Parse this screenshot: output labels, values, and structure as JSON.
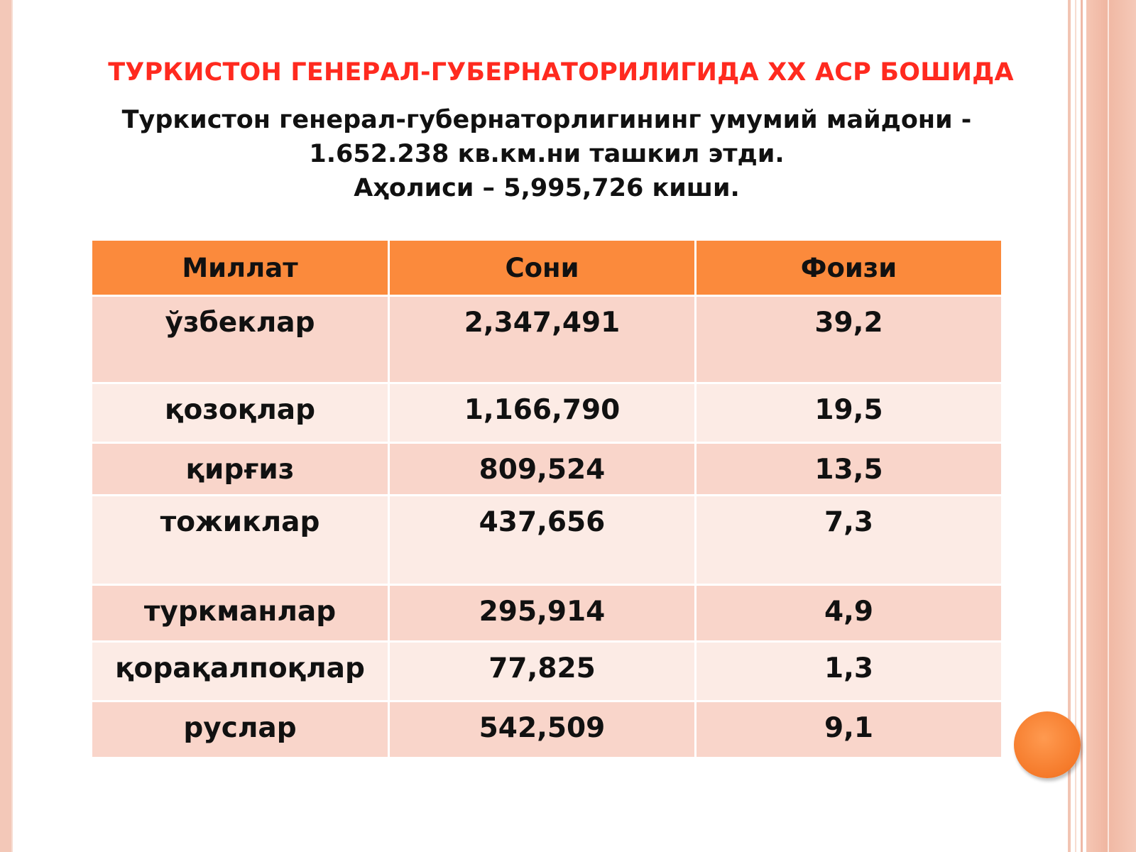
{
  "slide": {
    "title": "ТУРКИСТОН ГЕНЕРАЛ-ГУБЕРНАТОРИЛИГИДА XX АСР БОШИДА",
    "subtitle_line1": "Туркистон генерал-губернаторлигининг умумий майдони -",
    "subtitle_line2": "1.652.238 кв.км.ни ташкил этди.",
    "subtitle_line3": "Аҳолиси – 5,995,726 киши."
  },
  "table": {
    "headers": [
      "Миллат",
      "Сони",
      "Фоизи"
    ],
    "rows": [
      [
        "ўзбеклар",
        "2,347,491",
        "39,2"
      ],
      [
        "қозоқлар",
        "1,166,790",
        "19,5"
      ],
      [
        "қирғиз",
        "809,524",
        "13,5"
      ],
      [
        "тожиклар",
        "437,656",
        "7,3"
      ],
      [
        "туркманлар",
        "295,914",
        "4,9"
      ],
      [
        "қорақалпоқлар",
        "77,825",
        "1,3"
      ],
      [
        "руслар",
        "542,509",
        "9,1"
      ]
    ]
  },
  "colors": {
    "title": "#ff2a1f",
    "header_bg": "#fb8a3c",
    "row_dark": "#f9d5ca",
    "row_light": "#fcebe5",
    "accent_dot": "#f57a2a"
  }
}
